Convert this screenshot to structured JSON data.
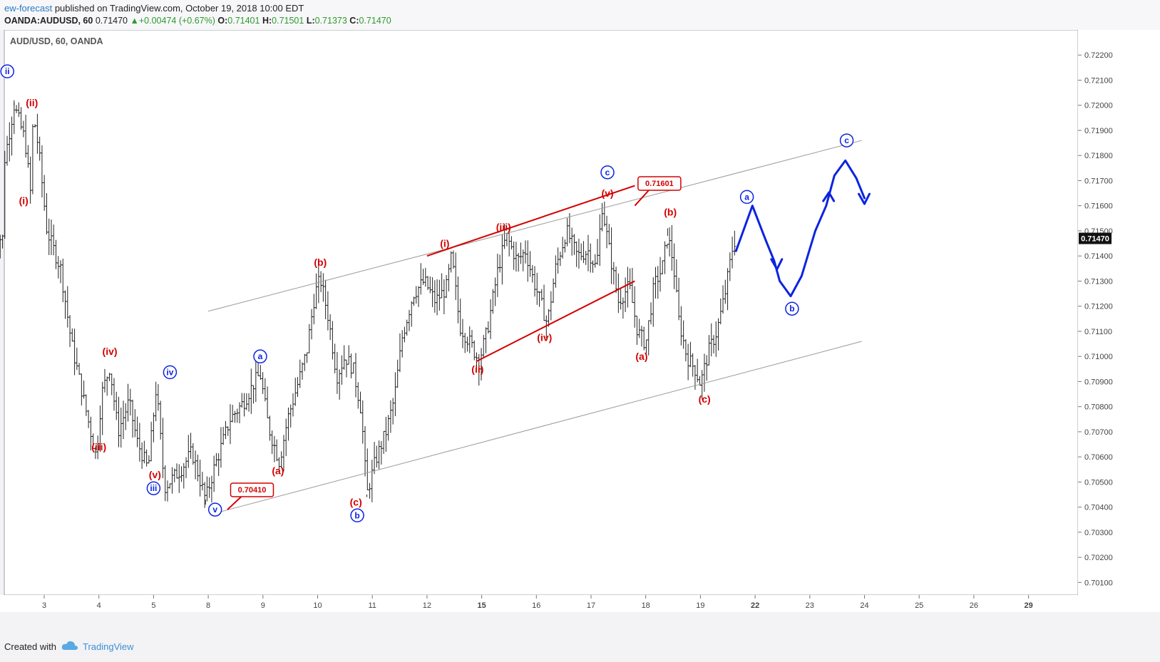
{
  "header": {
    "author": "ew-forecast",
    "published": "published on TradingView.com, October 19, 2018 10:00 EDT",
    "symbol": "OANDA:AUDUSD, 60",
    "last": "0.71470",
    "change": "+0.00474 (+0.67%)",
    "open_label": "O:",
    "open": "0.71401",
    "high_label": "H:",
    "high": "0.71501",
    "low_label": "L:",
    "low": "0.71373",
    "close_label": "C:",
    "close": "0.71470"
  },
  "chart_data": {
    "type": "candlestick",
    "title": "AUD/USD, 60, OANDA",
    "ylim": [
      0.7005,
      0.723
    ],
    "y_ticks": [
      "0.72200",
      "0.72100",
      "0.72000",
      "0.71900",
      "0.71800",
      "0.71700",
      "0.71600",
      "0.71500",
      "0.71400",
      "0.71300",
      "0.71200",
      "0.71100",
      "0.71000",
      "0.70900",
      "0.70800",
      "0.70700",
      "0.70600",
      "0.70500",
      "0.70400",
      "0.70300",
      "0.70200",
      "0.70100"
    ],
    "x_ticks": [
      {
        "label": "3",
        "t": 2
      },
      {
        "label": "4",
        "t": 4
      },
      {
        "label": "5",
        "t": 6
      },
      {
        "label": "8",
        "t": 8
      },
      {
        "label": "9",
        "t": 10
      },
      {
        "label": "10",
        "t": 12
      },
      {
        "label": "11",
        "t": 14
      },
      {
        "label": "12",
        "t": 16
      },
      {
        "label": "15",
        "t": 18,
        "bold": true
      },
      {
        "label": "16",
        "t": 20
      },
      {
        "label": "17",
        "t": 22
      },
      {
        "label": "18",
        "t": 24
      },
      {
        "label": "19",
        "t": 26
      },
      {
        "label": "22",
        "t": 28,
        "bold": true
      },
      {
        "label": "23",
        "t": 30
      },
      {
        "label": "24",
        "t": 32
      },
      {
        "label": "25",
        "t": 34
      },
      {
        "label": "26",
        "t": 36
      },
      {
        "label": "29",
        "t": 38,
        "bold": true
      }
    ],
    "last_price_label": "0.71470",
    "price_path": [
      [
        0.5,
        0.7175
      ],
      [
        0.9,
        0.72
      ],
      [
        1.3,
        0.7186
      ],
      [
        1.5,
        0.7165
      ],
      [
        1.6,
        0.7197
      ],
      [
        1.8,
        0.7182
      ],
      [
        2.1,
        0.715
      ],
      [
        2.6,
        0.7135
      ],
      [
        3.0,
        0.7105
      ],
      [
        3.5,
        0.708
      ],
      [
        3.9,
        0.706
      ],
      [
        4.1,
        0.7085
      ],
      [
        4.4,
        0.7096
      ],
      [
        4.7,
        0.707
      ],
      [
        5.1,
        0.7082
      ],
      [
        5.4,
        0.7066
      ],
      [
        5.8,
        0.7055
      ],
      [
        6.1,
        0.7088
      ],
      [
        6.4,
        0.7048
      ],
      [
        7.0,
        0.7055
      ],
      [
        7.4,
        0.7062
      ],
      [
        7.9,
        0.7043
      ],
      [
        8.2,
        0.7055
      ],
      [
        8.8,
        0.7075
      ],
      [
        9.3,
        0.7082
      ],
      [
        9.7,
        0.709
      ],
      [
        9.9,
        0.7093
      ],
      [
        10.2,
        0.7072
      ],
      [
        10.6,
        0.7058
      ],
      [
        10.9,
        0.7075
      ],
      [
        11.3,
        0.709
      ],
      [
        11.6,
        0.7102
      ],
      [
        11.9,
        0.7125
      ],
      [
        12.1,
        0.7131
      ],
      [
        12.4,
        0.7115
      ],
      [
        12.7,
        0.7092
      ],
      [
        13.0,
        0.71
      ],
      [
        13.3,
        0.7095
      ],
      [
        13.6,
        0.7078
      ],
      [
        13.8,
        0.7045
      ],
      [
        14.1,
        0.7058
      ],
      [
        14.5,
        0.707
      ],
      [
        14.8,
        0.7083
      ],
      [
        15.1,
        0.7108
      ],
      [
        15.5,
        0.7125
      ],
      [
        15.9,
        0.713
      ],
      [
        16.3,
        0.7122
      ],
      [
        16.7,
        0.7127
      ],
      [
        16.9,
        0.714
      ],
      [
        17.2,
        0.7112
      ],
      [
        17.6,
        0.7105
      ],
      [
        17.9,
        0.7098
      ],
      [
        18.2,
        0.711
      ],
      [
        18.6,
        0.7135
      ],
      [
        18.9,
        0.7148
      ],
      [
        19.3,
        0.7138
      ],
      [
        19.6,
        0.7142
      ],
      [
        19.9,
        0.713
      ],
      [
        20.2,
        0.712
      ],
      [
        20.4,
        0.7113
      ],
      [
        20.7,
        0.7135
      ],
      [
        21.1,
        0.715
      ],
      [
        21.5,
        0.714
      ],
      [
        21.9,
        0.7142
      ],
      [
        22.2,
        0.7135
      ],
      [
        22.4,
        0.716
      ],
      [
        22.7,
        0.714
      ],
      [
        23.0,
        0.7122
      ],
      [
        23.4,
        0.7128
      ],
      [
        23.7,
        0.711
      ],
      [
        24.0,
        0.7105
      ],
      [
        24.3,
        0.7128
      ],
      [
        24.6,
        0.7135
      ],
      [
        24.8,
        0.7148
      ],
      [
        25.0,
        0.7138
      ],
      [
        25.2,
        0.7115
      ],
      [
        25.5,
        0.71
      ],
      [
        25.8,
        0.7095
      ],
      [
        26.0,
        0.7089
      ],
      [
        26.3,
        0.7102
      ],
      [
        26.6,
        0.711
      ],
      [
        26.9,
        0.7125
      ],
      [
        27.2,
        0.7145
      ],
      [
        27.3,
        0.7147
      ]
    ],
    "channel_lines": [
      {
        "from": [
          8.0,
          0.7118
        ],
        "to": [
          31.9,
          0.7186
        ]
      },
      {
        "from": [
          8.4,
          0.7038
        ],
        "to": [
          31.9,
          0.7106
        ]
      }
    ],
    "red_lines": [
      {
        "from": [
          16.0,
          0.714
        ],
        "to": [
          23.6,
          0.7168
        ]
      },
      {
        "from": [
          17.8,
          0.7098
        ],
        "to": [
          23.6,
          0.713
        ]
      }
    ],
    "price_callouts": [
      {
        "label": "0.70410",
        "box": [
          9.6,
          0.7047
        ],
        "point": [
          8.7,
          0.7039
        ]
      },
      {
        "label": "0.71601",
        "box": [
          24.5,
          0.7169
        ],
        "point": [
          23.6,
          0.716
        ]
      }
    ],
    "wave_labels": [
      {
        "text": "ii",
        "t": 0.65,
        "y": 0.72135,
        "style": "circle"
      },
      {
        "text": "(ii)",
        "t": 1.55,
        "y": 0.7201,
        "style": "red"
      },
      {
        "text": "(i)",
        "t": 1.25,
        "y": 0.7162,
        "style": "red"
      },
      {
        "text": "(iii)",
        "t": 4.0,
        "y": 0.7064,
        "style": "red"
      },
      {
        "text": "(iv)",
        "t": 4.4,
        "y": 0.7102,
        "style": "red"
      },
      {
        "text": "iv",
        "t": 6.6,
        "y": 0.70937,
        "style": "circle"
      },
      {
        "text": "(v)",
        "t": 6.05,
        "y": 0.7053,
        "style": "red"
      },
      {
        "text": "iii",
        "t": 6.0,
        "y": 0.70475,
        "style": "circle"
      },
      {
        "text": "v",
        "t": 8.25,
        "y": 0.7039,
        "style": "circle"
      },
      {
        "text": "a",
        "t": 9.9,
        "y": 0.71,
        "style": "circle"
      },
      {
        "text": "(a)",
        "t": 10.55,
        "y": 0.70545,
        "style": "red"
      },
      {
        "text": "(b)",
        "t": 12.1,
        "y": 0.71375,
        "style": "red"
      },
      {
        "text": "(c)",
        "t": 13.4,
        "y": 0.7042,
        "style": "red"
      },
      {
        "text": "b",
        "t": 13.45,
        "y": 0.70367,
        "style": "circle"
      },
      {
        "text": "(i)",
        "t": 16.65,
        "y": 0.7145,
        "style": "red"
      },
      {
        "text": "(ii)",
        "t": 17.85,
        "y": 0.7095,
        "style": "red"
      },
      {
        "text": "(iii)",
        "t": 18.8,
        "y": 0.71515,
        "style": "red"
      },
      {
        "text": "(iv)",
        "t": 20.3,
        "y": 0.71075,
        "style": "red"
      },
      {
        "text": "c",
        "t": 22.6,
        "y": 0.71733,
        "style": "circle"
      },
      {
        "text": "(v)",
        "t": 22.6,
        "y": 0.7165,
        "style": "red"
      },
      {
        "text": "(b)",
        "t": 24.9,
        "y": 0.71575,
        "style": "red"
      },
      {
        "text": "(a)",
        "t": 23.85,
        "y": 0.71,
        "style": "red"
      },
      {
        "text": "(c)",
        "t": 26.15,
        "y": 0.7083,
        "style": "red"
      },
      {
        "text": "a",
        "t": 27.7,
        "y": 0.71635,
        "style": "circle"
      },
      {
        "text": "b",
        "t": 29.35,
        "y": 0.7119,
        "style": "circle"
      },
      {
        "text": "c",
        "t": 31.35,
        "y": 0.7186,
        "style": "circle"
      },
      {
        "text": "",
        "t": 0.0,
        "y": 0.71605,
        "style": "circle-partial"
      }
    ],
    "projection": {
      "color": "#0b24e0",
      "path": [
        [
          27.3,
          0.7142
        ],
        [
          27.9,
          0.716
        ],
        [
          28.4,
          0.7146
        ],
        [
          28.7,
          0.7138
        ],
        [
          28.9,
          0.713
        ],
        [
          29.3,
          0.7124
        ],
        [
          29.7,
          0.7132
        ],
        [
          30.2,
          0.715
        ],
        [
          30.6,
          0.716
        ],
        [
          30.9,
          0.7172
        ],
        [
          31.3,
          0.7178
        ],
        [
          31.7,
          0.7171
        ],
        [
          32.0,
          0.7163
        ]
      ],
      "arrow_heads": [
        [
          28.8,
          0.7137
        ],
        [
          30.7,
          0.7163
        ],
        [
          32.0,
          0.7163
        ]
      ]
    }
  },
  "footer": {
    "created_with": "Created with",
    "brand": "TradingView"
  },
  "colors": {
    "red": "#d40000",
    "blue": "#0b24e0",
    "grid": "#cfd2d6",
    "bars": "#222222"
  }
}
